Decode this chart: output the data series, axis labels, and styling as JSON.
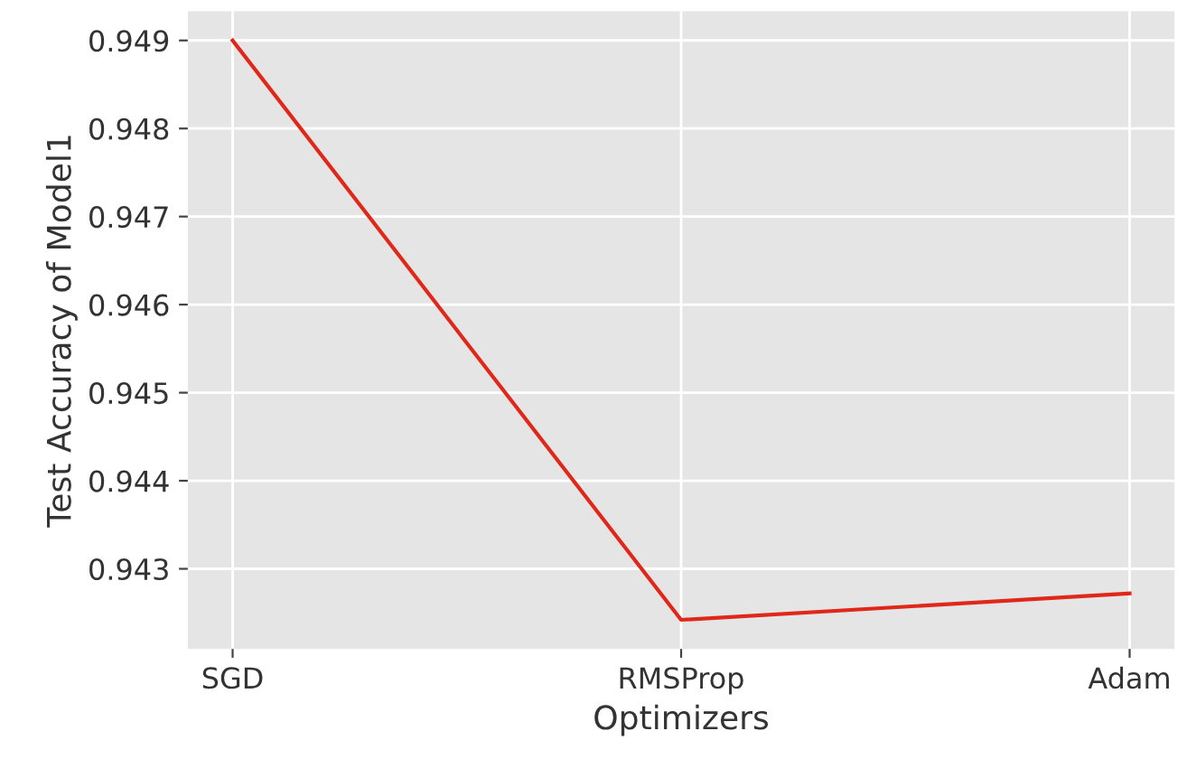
{
  "chart_data": {
    "type": "line",
    "xlabel": "Optimizers",
    "ylabel": "Test Accuracy of Model1",
    "categories": [
      "SGD",
      "RMSProp",
      "Adam"
    ],
    "series": [
      {
        "color": "#e0281a",
        "values": [
          0.949,
          0.94242,
          0.94272
        ]
      }
    ],
    "ylim": [
      0.94209,
      0.94933
    ],
    "yticks": [
      0.943,
      0.944,
      0.945,
      0.946,
      0.947,
      0.948,
      0.949
    ],
    "grid": true,
    "marker": "none",
    "line_style": "solid"
  }
}
